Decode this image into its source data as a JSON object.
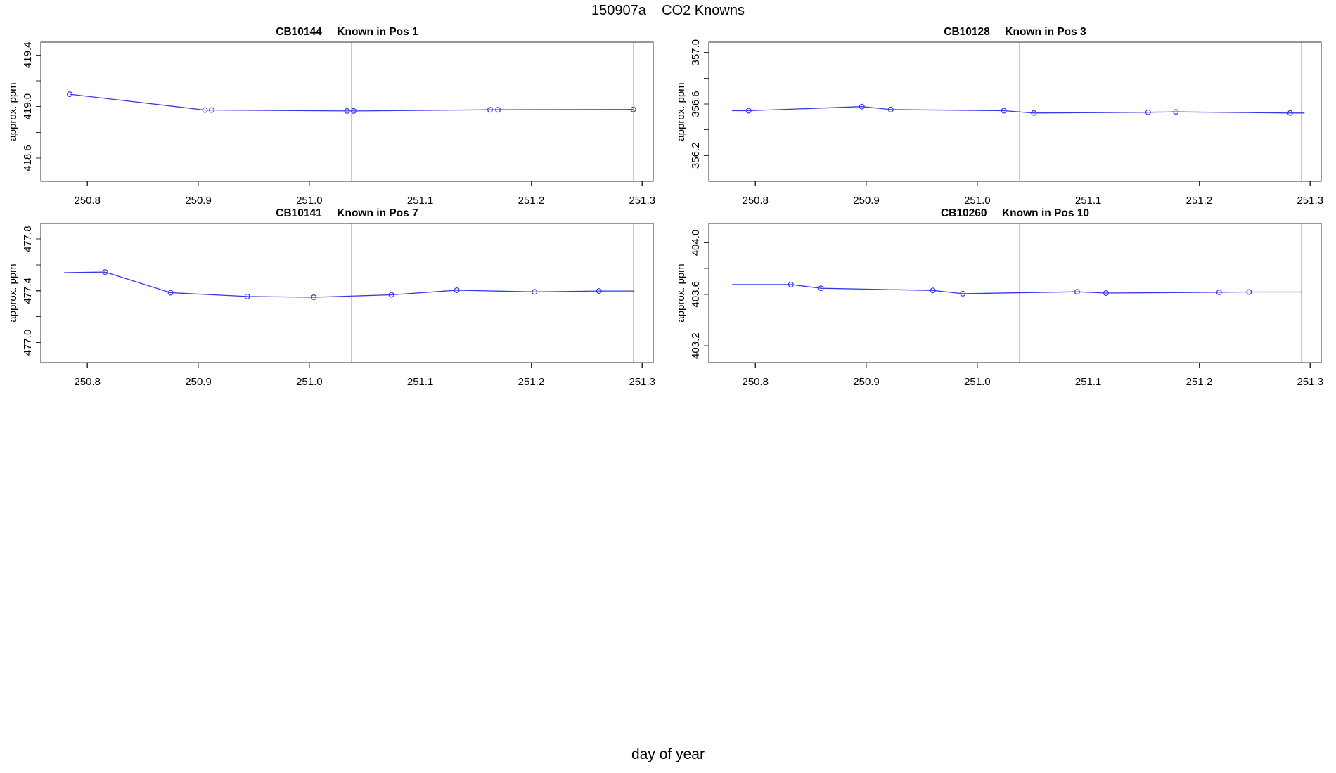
{
  "page": {
    "main_title": "150907a    CO2 Knowns",
    "x_axis_label": "day of year",
    "colors": {
      "line": "#3838e8",
      "box": "#2f2f2f",
      "abline": "#c9c9c9",
      "text": "#000000",
      "background": "#ffffff"
    }
  },
  "chart_data": [
    {
      "type": "line",
      "title": "CB10144     Known in Pos 1",
      "ylabel": "approx. ppm",
      "xlabel": "day of year",
      "legend": "none",
      "grid": false,
      "xlim": [
        250.758,
        251.31
      ],
      "ylim": [
        418.42,
        419.5
      ],
      "xticks": [
        250.8,
        250.9,
        251.0,
        251.1,
        251.2,
        251.3
      ],
      "yticks": [
        418.6,
        418.8,
        419.0,
        419.2,
        419.4
      ],
      "ytick_labels": [
        "418.6",
        "",
        "419.0",
        "",
        "419.4"
      ],
      "vlines": [
        251.038,
        251.292
      ],
      "line": [
        [
          250.784,
          419.096
        ],
        [
          250.906,
          418.973
        ],
        [
          250.912,
          418.973
        ],
        [
          251.034,
          418.966
        ],
        [
          251.04,
          418.966
        ],
        [
          251.163,
          418.975
        ],
        [
          251.17,
          418.975
        ],
        [
          251.292,
          418.978
        ]
      ],
      "markers": [
        [
          250.784,
          419.096
        ],
        [
          250.906,
          418.973
        ],
        [
          250.912,
          418.973
        ],
        [
          251.034,
          418.966
        ],
        [
          251.04,
          418.966
        ],
        [
          251.163,
          418.975
        ],
        [
          251.17,
          418.975
        ],
        [
          251.292,
          418.978
        ]
      ]
    },
    {
      "type": "line",
      "title": "CB10128     Known in Pos 3",
      "ylabel": "approx. ppm",
      "xlabel": "day of year",
      "legend": "none",
      "grid": false,
      "xlim": [
        250.758,
        251.31
      ],
      "ylim": [
        356.0,
        357.08
      ],
      "xticks": [
        250.8,
        250.9,
        251.0,
        251.1,
        251.2,
        251.3
      ],
      "yticks": [
        356.2,
        356.4,
        356.6,
        356.8,
        357.0
      ],
      "ytick_labels": [
        "356.2",
        "",
        "356.6",
        "",
        "357.0"
      ],
      "vlines": [
        251.038,
        251.292
      ],
      "line": [
        [
          250.779,
          356.548
        ],
        [
          250.794,
          356.548
        ],
        [
          250.896,
          356.58
        ],
        [
          250.922,
          356.557
        ],
        [
          251.024,
          356.548
        ],
        [
          251.051,
          356.53
        ],
        [
          251.154,
          356.536
        ],
        [
          251.179,
          356.539
        ],
        [
          251.282,
          356.53
        ],
        [
          251.295,
          356.53
        ]
      ],
      "markers": [
        [
          250.794,
          356.548
        ],
        [
          250.896,
          356.58
        ],
        [
          250.922,
          356.557
        ],
        [
          251.024,
          356.548
        ],
        [
          251.051,
          356.53
        ],
        [
          251.154,
          356.536
        ],
        [
          251.179,
          356.539
        ],
        [
          251.282,
          356.53
        ]
      ]
    },
    {
      "type": "line",
      "title": "CB10141     Known in Pos 7",
      "ylabel": "approx. ppm",
      "xlabel": "day of year",
      "legend": "none",
      "grid": false,
      "xlim": [
        250.758,
        251.31
      ],
      "ylim": [
        476.845,
        477.92
      ],
      "xticks": [
        250.8,
        250.9,
        251.0,
        251.1,
        251.2,
        251.3
      ],
      "yticks": [
        477.0,
        477.2,
        477.4,
        477.6,
        477.8
      ],
      "ytick_labels": [
        "477.0",
        "",
        "477.4",
        "",
        "477.8"
      ],
      "vlines": [
        251.038,
        251.292
      ],
      "line": [
        [
          250.779,
          477.54
        ],
        [
          250.816,
          477.545
        ],
        [
          250.875,
          477.385
        ],
        [
          250.944,
          477.356
        ],
        [
          251.004,
          477.35
        ],
        [
          251.074,
          477.369
        ],
        [
          251.133,
          477.404
        ],
        [
          251.203,
          477.392
        ],
        [
          251.261,
          477.398
        ],
        [
          251.293,
          477.398
        ]
      ],
      "markers": [
        [
          250.816,
          477.545
        ],
        [
          250.875,
          477.385
        ],
        [
          250.944,
          477.356
        ],
        [
          251.004,
          477.35
        ],
        [
          251.074,
          477.369
        ],
        [
          251.133,
          477.404
        ],
        [
          251.203,
          477.392
        ],
        [
          251.261,
          477.398
        ]
      ]
    },
    {
      "type": "line",
      "title": "CB10260     Known in Pos 10",
      "ylabel": "approx. ppm",
      "xlabel": "day of year",
      "legend": "none",
      "grid": false,
      "xlim": [
        250.758,
        251.31
      ],
      "ylim": [
        403.07,
        404.15
      ],
      "xticks": [
        250.8,
        250.9,
        251.0,
        251.1,
        251.2,
        251.3
      ],
      "yticks": [
        403.2,
        403.4,
        403.6,
        403.8,
        404.0
      ],
      "ytick_labels": [
        "403.2",
        "",
        "403.6",
        "",
        "404.0"
      ],
      "vlines": [
        251.038,
        251.292
      ],
      "line": [
        [
          250.779,
          403.676
        ],
        [
          250.832,
          403.676
        ],
        [
          250.859,
          403.647
        ],
        [
          250.96,
          403.63
        ],
        [
          250.987,
          403.605
        ],
        [
          251.09,
          403.62
        ],
        [
          251.116,
          403.61
        ],
        [
          251.218,
          403.616
        ],
        [
          251.245,
          403.618
        ],
        [
          251.293,
          403.618
        ]
      ],
      "markers": [
        [
          250.832,
          403.676
        ],
        [
          250.859,
          403.647
        ],
        [
          250.96,
          403.63
        ],
        [
          250.987,
          403.605
        ],
        [
          251.09,
          403.62
        ],
        [
          251.116,
          403.61
        ],
        [
          251.218,
          403.616
        ],
        [
          251.245,
          403.618
        ]
      ]
    }
  ]
}
